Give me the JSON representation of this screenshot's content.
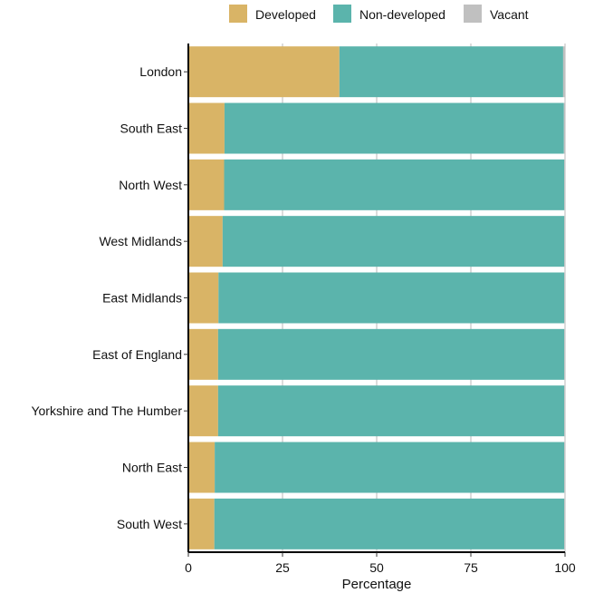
{
  "chart_data": {
    "type": "bar",
    "orientation": "horizontal",
    "stacked": true,
    "title": "",
    "xlabel": "Percentage",
    "ylabel": "",
    "xlim": [
      0,
      100
    ],
    "xticks": [
      "0",
      "25",
      "50",
      "75",
      "100"
    ],
    "grid": true,
    "legend_position": "top-right",
    "categories": [
      "London",
      "South East",
      "North West",
      "West Midlands",
      "East Midlands",
      "East of England",
      "Yorkshire and The Humber",
      "North East",
      "South West"
    ],
    "series": [
      {
        "name": "Developed",
        "color": "#D9B466",
        "values": [
          40.1,
          9.6,
          9.5,
          9.1,
          8.0,
          7.9,
          7.9,
          7.0,
          6.9
        ]
      },
      {
        "name": "Non-developed",
        "color": "#5BB4AC",
        "values": [
          59.4,
          90.1,
          90.3,
          90.7,
          91.8,
          91.9,
          91.9,
          92.8,
          92.9
        ]
      },
      {
        "name": "Vacant",
        "color": "#C0C0C0",
        "values": [
          0.5,
          0.3,
          0.2,
          0.2,
          0.2,
          0.2,
          0.2,
          0.2,
          0.2
        ]
      }
    ]
  }
}
